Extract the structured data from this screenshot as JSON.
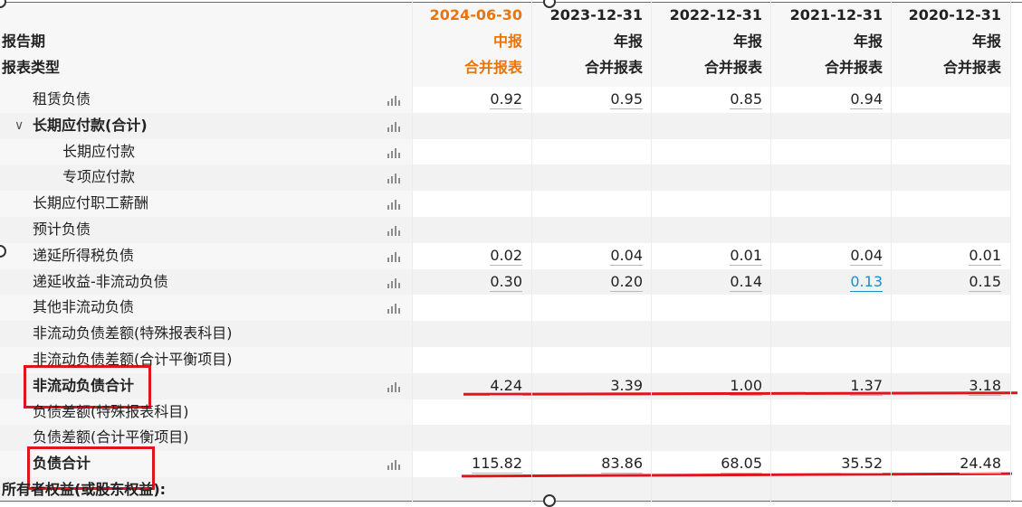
{
  "header": {
    "period_label": "报告期",
    "type_label": "报表类型",
    "columns": [
      {
        "date": "2024-06-30",
        "period": "中报",
        "type": "合并报表",
        "highlight": true
      },
      {
        "date": "2023-12-31",
        "period": "年报",
        "type": "合并报表"
      },
      {
        "date": "2022-12-31",
        "period": "年报",
        "type": "合并报表"
      },
      {
        "date": "2021-12-31",
        "period": "年报",
        "type": "合并报表"
      },
      {
        "date": "2020-12-31",
        "period": "年报",
        "type": "合并报表"
      }
    ]
  },
  "rows": [
    {
      "label": "租赁负债",
      "chart": true,
      "values": [
        "0.92",
        "0.95",
        "0.85",
        "0.94",
        ""
      ]
    },
    {
      "label": "长期应付款(合计)",
      "chart": true,
      "bold": true,
      "expand": "∨",
      "values": [
        "",
        "",
        "",
        "",
        ""
      ]
    },
    {
      "label": "长期应付款",
      "chart": true,
      "values": [
        "",
        "",
        "",
        "",
        ""
      ]
    },
    {
      "label": "专项应付款",
      "chart": true,
      "values": [
        "",
        "",
        "",
        "",
        ""
      ]
    },
    {
      "label": "长期应付职工薪酬",
      "chart": true,
      "values": [
        "",
        "",
        "",
        "",
        ""
      ]
    },
    {
      "label": "预计负债",
      "chart": true,
      "values": [
        "",
        "",
        "",
        "",
        ""
      ]
    },
    {
      "label": "递延所得税负债",
      "chart": true,
      "values": [
        "0.02",
        "0.04",
        "0.01",
        "0.04",
        "0.01"
      ]
    },
    {
      "label": "递延收益-非流动负债",
      "chart": true,
      "values": [
        "0.30",
        "0.20",
        "0.14",
        "0.13",
        "0.15"
      ]
    },
    {
      "label": "其他非流动负债",
      "chart": true,
      "values": [
        "",
        "",
        "",
        "",
        ""
      ]
    },
    {
      "label": "非流动负债差额(特殊报表科目)",
      "chart": false,
      "values": [
        "",
        "",
        "",
        "",
        ""
      ]
    },
    {
      "label": "非流动负债差额(合计平衡项目)",
      "chart": false,
      "values": [
        "",
        "",
        "",
        "",
        ""
      ]
    },
    {
      "label": "非流动负债合计",
      "chart": true,
      "bold": true,
      "values": [
        "4.24",
        "3.39",
        "1.00",
        "1.37",
        "3.18"
      ]
    },
    {
      "label": "负债差额(特殊报表科目)",
      "chart": false,
      "values": [
        "",
        "",
        "",
        "",
        ""
      ]
    },
    {
      "label": "负债差额(合计平衡项目)",
      "chart": false,
      "values": [
        "",
        "",
        "",
        "",
        ""
      ]
    },
    {
      "label": "负债合计",
      "chart": true,
      "bold": true,
      "values": [
        "115.82",
        "83.86",
        "68.05",
        "35.52",
        "24.48"
      ]
    },
    {
      "label": "所有者权益(或股东权益):",
      "chart": false,
      "bold": true,
      "section": true,
      "values": [
        "",
        "",
        "",
        "",
        ""
      ]
    }
  ],
  "colors": {
    "accent_orange": "#e8750a",
    "link_blue": "#1a8fc7",
    "annotation_red": "#e0141c",
    "stripe": "#f2f2f2"
  }
}
